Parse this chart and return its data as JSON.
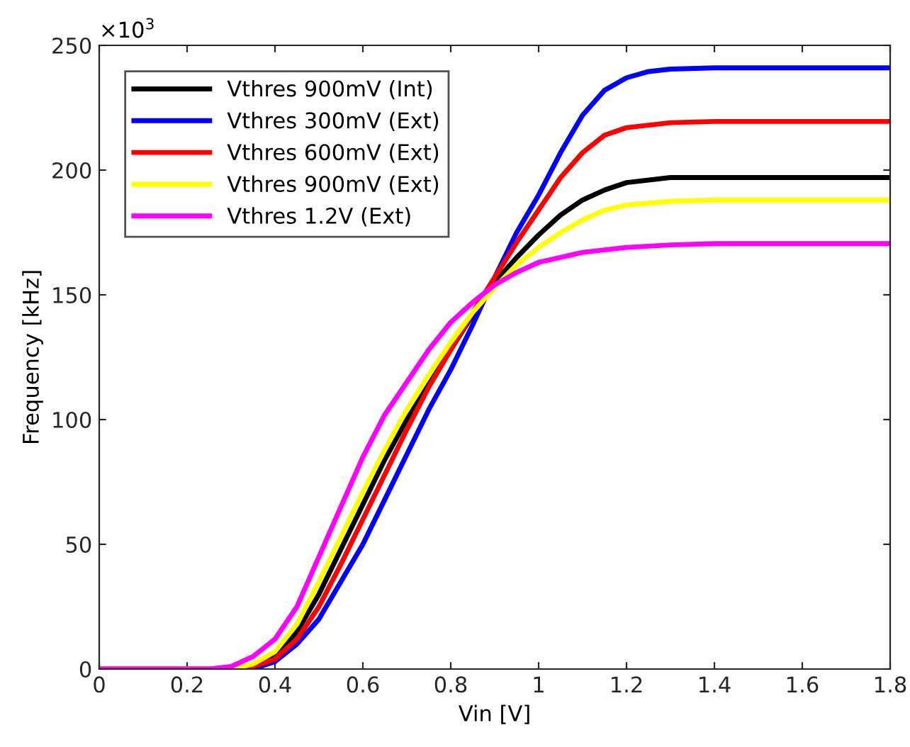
{
  "chart_data": {
    "type": "line",
    "xlabel": "Vin [V]",
    "ylabel": "Frequency [kHz]",
    "annotations": [
      "×10$^{3}$"
    ],
    "xlim": [
      0,
      1.8
    ],
    "xticks": [
      0,
      0.2,
      0.4,
      0.6,
      0.8,
      1,
      1.2,
      1.4,
      1.6,
      1.8
    ],
    "ylim": [
      0,
      250
    ],
    "yticks": [
      0,
      50,
      100,
      150,
      200,
      250
    ],
    "grid": false,
    "legend": "top left",
    "line_style": "solid",
    "marker": "none",
    "series": [
      {
        "name": "Vthres 900mV (Int)",
        "color": "#000000",
        "x": [
          0,
          0.2,
          0.3,
          0.35,
          0.4,
          0.45,
          0.5,
          0.55,
          0.6,
          0.65,
          0.7,
          0.75,
          0.8,
          0.85,
          0.9,
          0.95,
          1.0,
          1.05,
          1.1,
          1.15,
          1.2,
          1.3,
          1.4,
          1.8
        ],
        "values": [
          0,
          0,
          0,
          1,
          5,
          15,
          30,
          48,
          66,
          84,
          100,
          114,
          128,
          142,
          155,
          165,
          174,
          182,
          188,
          192,
          195,
          197,
          197,
          197
        ]
      },
      {
        "name": "Vthres 300mV (Ext)",
        "color": "#0000ff",
        "x": [
          0.3,
          0.35,
          0.4,
          0.45,
          0.5,
          0.55,
          0.6,
          0.65,
          0.7,
          0.75,
          0.8,
          0.85,
          0.9,
          0.95,
          1.0,
          1.05,
          1.1,
          1.15,
          1.2,
          1.25,
          1.3,
          1.4,
          1.8
        ],
        "values": [
          0,
          0,
          3,
          10,
          20,
          35,
          50,
          68,
          86,
          104,
          120,
          138,
          157,
          175,
          190,
          207,
          222,
          232,
          237,
          239.5,
          240.5,
          241,
          241
        ]
      },
      {
        "name": "Vthres 600mV (Ext)",
        "color": "#ff0000",
        "x": [
          0,
          0.2,
          0.3,
          0.35,
          0.4,
          0.45,
          0.5,
          0.55,
          0.6,
          0.65,
          0.7,
          0.75,
          0.8,
          0.85,
          0.9,
          0.95,
          1.0,
          1.05,
          1.1,
          1.15,
          1.2,
          1.3,
          1.4,
          1.8
        ],
        "values": [
          0,
          0,
          0,
          1,
          4,
          12,
          25,
          42,
          60,
          78,
          96,
          113,
          128,
          143,
          157,
          171,
          184,
          197,
          207,
          214,
          217,
          219,
          219.5,
          219.5
        ]
      },
      {
        "name": "Vthres 900mV (Ext)",
        "color": "#ffff00",
        "x": [
          0,
          0.2,
          0.3,
          0.35,
          0.4,
          0.45,
          0.5,
          0.55,
          0.6,
          0.65,
          0.7,
          0.75,
          0.8,
          0.85,
          0.9,
          0.95,
          1.0,
          1.05,
          1.1,
          1.15,
          1.2,
          1.3,
          1.4,
          1.8
        ],
        "values": [
          0,
          0,
          0,
          2,
          7,
          18,
          35,
          53,
          71,
          88,
          104,
          118,
          131,
          143,
          153,
          162,
          169,
          175,
          180,
          184,
          186,
          187.5,
          188,
          188
        ]
      },
      {
        "name": "Vthres 1.2V (Ext)",
        "color": "#ff00ff",
        "x": [
          0,
          0.2,
          0.25,
          0.3,
          0.35,
          0.4,
          0.45,
          0.5,
          0.55,
          0.6,
          0.65,
          0.7,
          0.75,
          0.8,
          0.85,
          0.9,
          0.95,
          1.0,
          1.1,
          1.2,
          1.3,
          1.4,
          1.8
        ],
        "values": [
          0,
          0,
          0,
          1,
          5,
          12,
          25,
          45,
          65,
          85,
          102,
          115,
          128,
          139,
          147,
          154,
          159,
          163,
          167,
          169,
          170,
          170.5,
          170.5
        ]
      }
    ]
  }
}
